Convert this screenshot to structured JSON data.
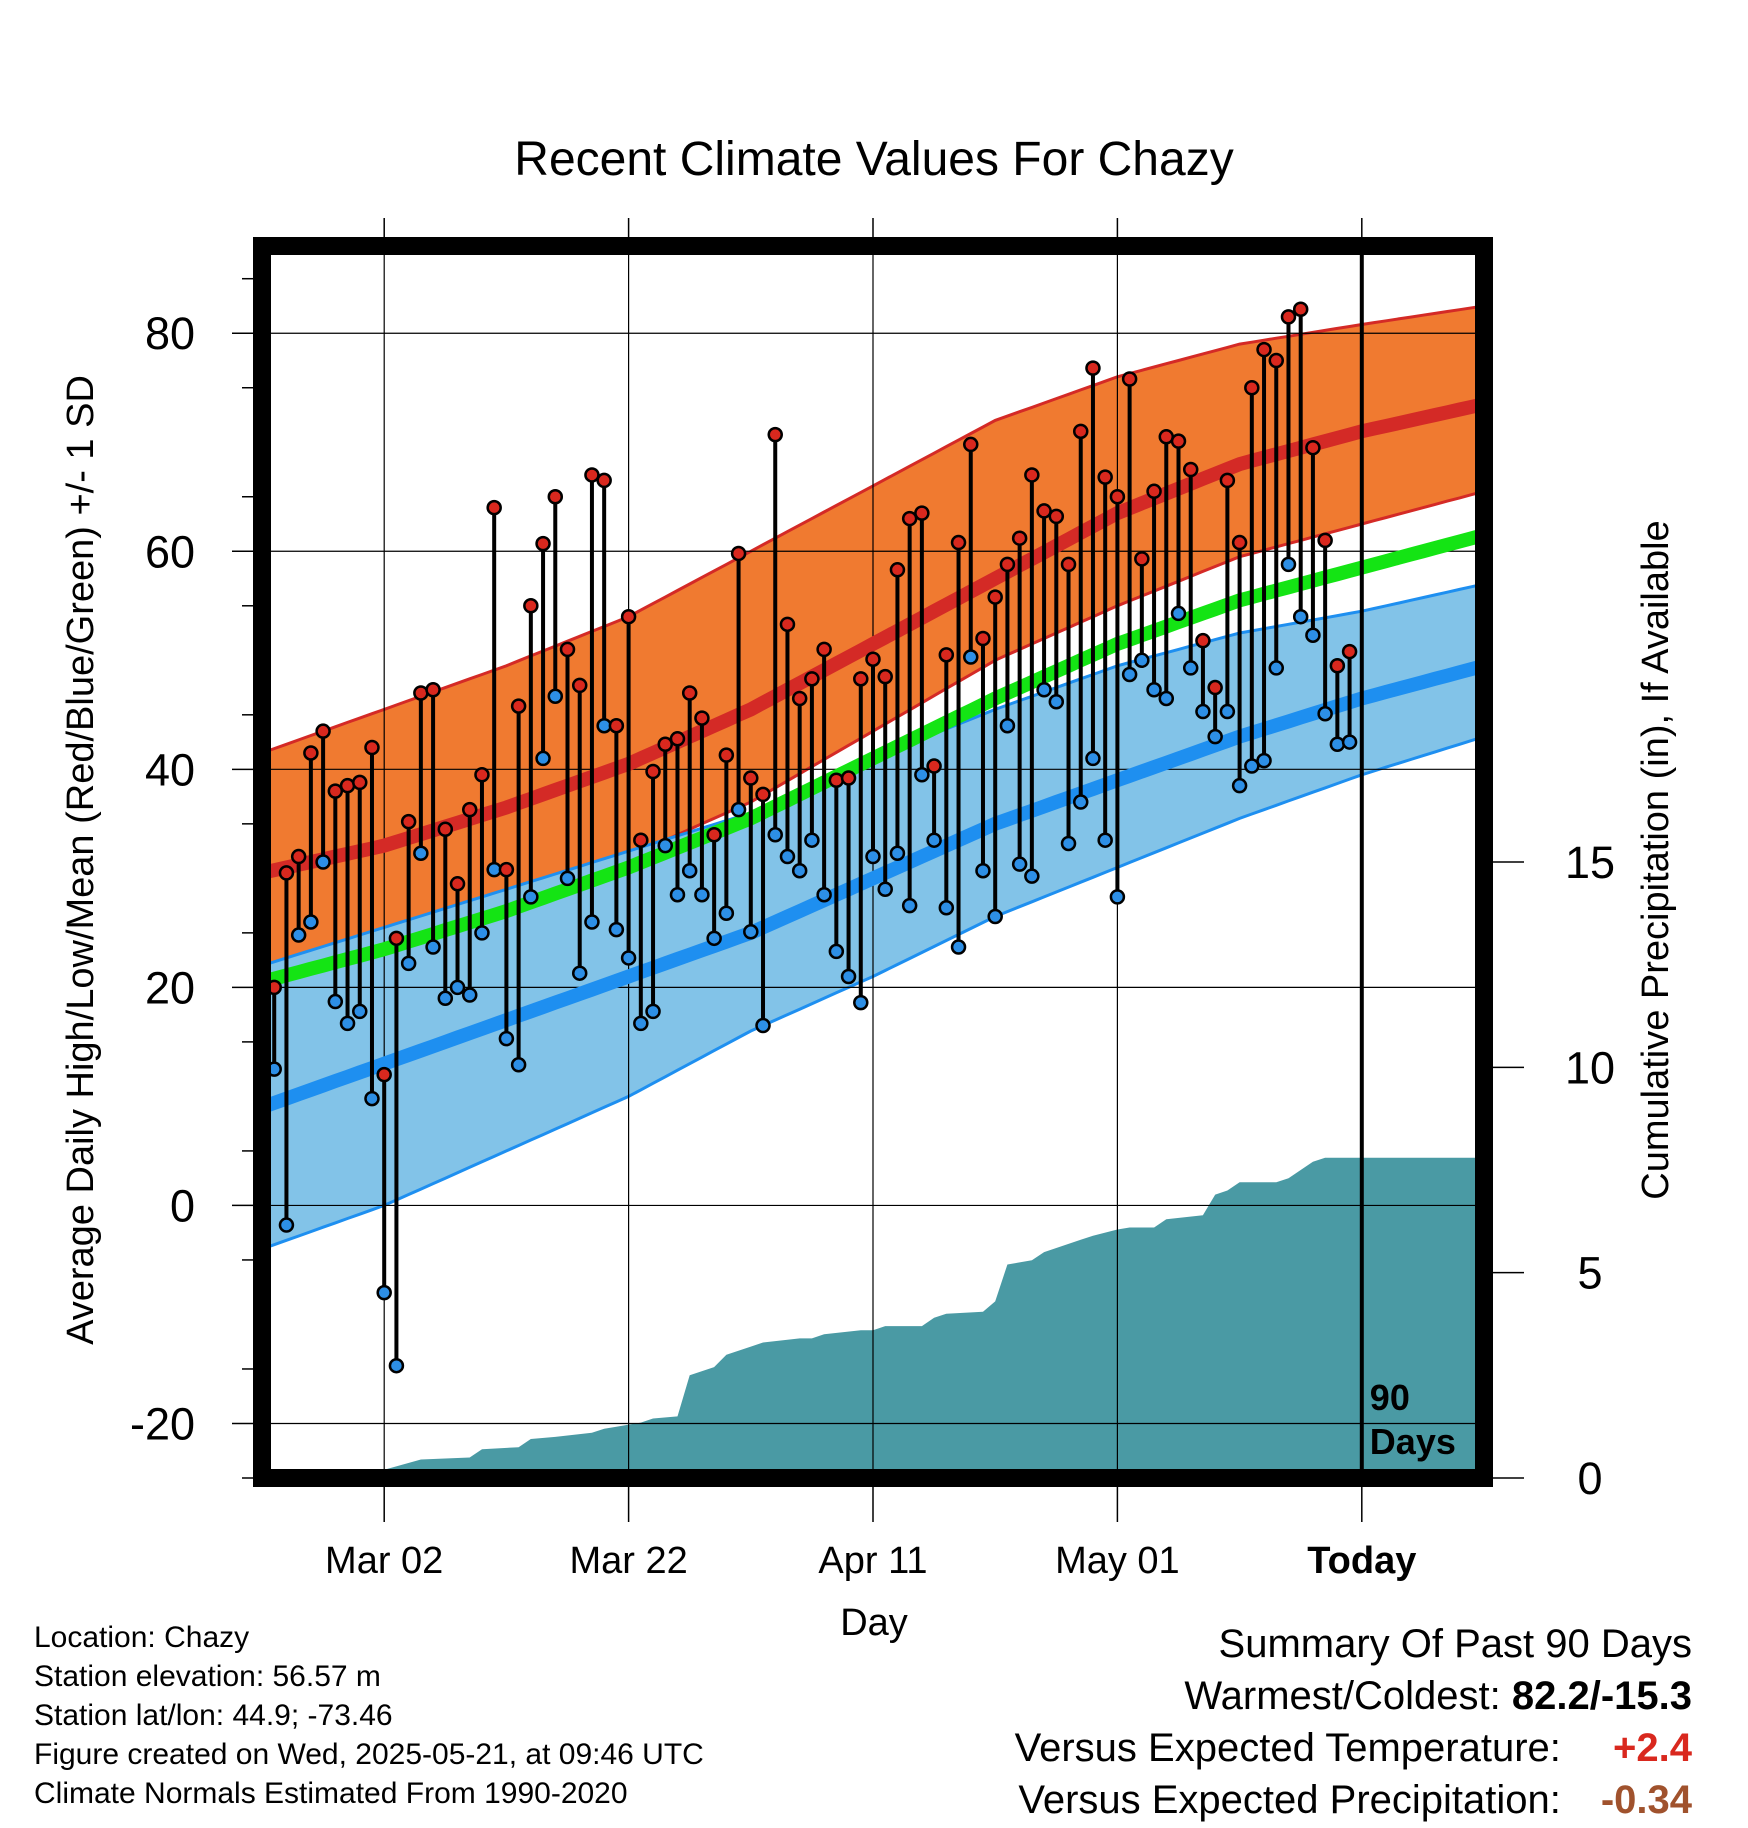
{
  "chart_data": {
    "type": "line",
    "title": "Recent Climate Values For Chazy",
    "xlabel": "Day",
    "ylabel": "Average Daily High/Low/Mean (Red/Blue/Green) +/- 1 SD",
    "y2label": "Cumulative Precipitation (in), If Available",
    "x_day_range": [
      -90,
      10
    ],
    "x_ticks": [
      {
        "day": -80,
        "label": "Mar 02"
      },
      {
        "day": -60,
        "label": "Mar 22"
      },
      {
        "day": -40,
        "label": "Apr 11"
      },
      {
        "day": -20,
        "label": "May 01"
      },
      {
        "day": 0,
        "label": "Today"
      }
    ],
    "ylim": [
      -25,
      88
    ],
    "y_ticks": [
      -20,
      0,
      20,
      40,
      60,
      80
    ],
    "y2lim": [
      0,
      30
    ],
    "y2_ticks": [
      0,
      5,
      10,
      15
    ],
    "today_marker": "90\nDays",
    "grid": true,
    "normals": {
      "day": [
        -90,
        -80,
        -70,
        -60,
        -50,
        -40,
        -30,
        -20,
        -10,
        0,
        10
      ],
      "high_mean": [
        30.5,
        33,
        36.5,
        40.5,
        45.5,
        51.5,
        57.5,
        63.5,
        68,
        71,
        73.5
      ],
      "high_sd_upper": [
        41.5,
        45.5,
        49.5,
        54,
        60,
        66,
        72,
        76,
        79,
        80.8,
        82.5
      ],
      "high_sd_lower": [
        22,
        25,
        28.5,
        32,
        37,
        43.5,
        50,
        55,
        59.5,
        62.5,
        65.5
      ],
      "low_mean": [
        9,
        13,
        17,
        21,
        25,
        30,
        35,
        39,
        43,
        46.5,
        49.5
      ],
      "low_sd_upper": [
        22,
        25.5,
        29,
        32.5,
        36,
        41,
        45.5,
        49.5,
        52.5,
        54.5,
        57
      ],
      "low_sd_lower": [
        -4,
        0,
        5,
        10,
        16,
        21,
        26.5,
        31,
        35.5,
        39.5,
        43
      ],
      "mean": [
        20.5,
        23.5,
        27,
        31,
        35.5,
        41,
        46.5,
        51.5,
        55.5,
        58.5,
        61.5
      ]
    },
    "series": [
      {
        "name": "High",
        "values": [
          23,
          20,
          30.5,
          32,
          41.5,
          43.5,
          38,
          38.5,
          38.8,
          42,
          12,
          24.5,
          35.2,
          47,
          47.3,
          34.5,
          29.5,
          36.3,
          39.5,
          64,
          30.8,
          45.8,
          55,
          60.7,
          65,
          51,
          47.7,
          67,
          66.5,
          44,
          54,
          33.5,
          39.8,
          42.3,
          42.8,
          47,
          44.7,
          34,
          41.3,
          59.8,
          39.2,
          37.7,
          70.7,
          53.3,
          46.5,
          48.3,
          51,
          39,
          39.2,
          48.3,
          50.1,
          48.5,
          58.3,
          63,
          63.5,
          40.3,
          50.5,
          60.8,
          69.8,
          52,
          55.8,
          58.8,
          61.2,
          67,
          63.7,
          63.2,
          58.8,
          71,
          76.8,
          66.8,
          65,
          75.8,
          59.3,
          65.5,
          70.5,
          70.1,
          67.5,
          51.8,
          47.5,
          66.5,
          60.8,
          75,
          78.5,
          77.5,
          81.5,
          82.2,
          69.5,
          61,
          49.5,
          50.8
        ]
      },
      {
        "name": "Low",
        "values": [
          -15.3,
          12.5,
          -1.8,
          24.8,
          26,
          31.5,
          18.7,
          16.7,
          17.8,
          9.8,
          -8,
          -14.7,
          22.2,
          32.3,
          23.7,
          19,
          20,
          19.3,
          25,
          30.8,
          15.3,
          12.9,
          28.3,
          41,
          46.7,
          30,
          21.3,
          26,
          44,
          25.3,
          22.7,
          16.7,
          17.8,
          33,
          28.5,
          30.7,
          28.5,
          24.5,
          26.8,
          36.3,
          25.1,
          16.5,
          34,
          32,
          30.7,
          33.5,
          28.5,
          23.3,
          21,
          18.6,
          32,
          29,
          32.3,
          27.5,
          39.5,
          33.5,
          27.3,
          23.7,
          50.3,
          30.7,
          26.5,
          44,
          31.3,
          30.2,
          47.3,
          46.2,
          33.2,
          37,
          41,
          33.5,
          28.3,
          48.7,
          50,
          47.3,
          46.5,
          54.3,
          49.3,
          45.3,
          43,
          45.3,
          38.5,
          40.3,
          40.8,
          49.3,
          58.8,
          54,
          52.3,
          45.1,
          42.3,
          42.5
        ]
      }
    ],
    "precipitation": {
      "day": [
        -90,
        -81,
        -80,
        -77,
        -73,
        -72,
        -69,
        -68,
        -66,
        -63,
        -62,
        -61,
        -59,
        -58,
        -56,
        -55,
        -53,
        -52,
        -50,
        -49,
        -46,
        -45,
        -44,
        -41,
        -40,
        -39,
        -36,
        -35,
        -34,
        -31,
        -30,
        -29,
        -27,
        -26,
        -23,
        -22,
        -20,
        -19,
        -17,
        -16,
        -13,
        -12,
        -11,
        -10,
        -7,
        -6,
        -5,
        -4,
        -3,
        -2,
        10
      ],
      "total": [
        0,
        0,
        0.2,
        0.45,
        0.5,
        0.7,
        0.75,
        0.95,
        1.0,
        1.1,
        1.2,
        1.25,
        1.35,
        1.45,
        1.5,
        2.5,
        2.7,
        3.0,
        3.2,
        3.3,
        3.4,
        3.4,
        3.5,
        3.6,
        3.6,
        3.7,
        3.7,
        3.9,
        4.0,
        4.05,
        4.3,
        5.2,
        5.3,
        5.5,
        5.8,
        5.9,
        6.05,
        6.1,
        6.1,
        6.3,
        6.4,
        6.9,
        7.0,
        7.2,
        7.2,
        7.3,
        7.5,
        7.7,
        7.8,
        7.8,
        7.8
      ]
    }
  },
  "info": {
    "location": "Location: Chazy",
    "elevation": "Station elevation: 56.57 m",
    "latlon": "Station lat/lon: 44.9; -73.46",
    "created": "Figure created on Wed, 2025-05-21, at 09:46 UTC",
    "normals": "Climate Normals Estimated From 1990-2020"
  },
  "summary": {
    "title": "Summary Of Past 90 Days",
    "warm_cold_label": "Warmest/Coldest:",
    "warm_cold_value": "82.2/-15.3",
    "temp_label": "Versus Expected Temperature:",
    "temp_value": "+2.4",
    "precip_label": "Versus Expected Precipitation:",
    "precip_value": "-0.34"
  },
  "colors": {
    "high_band": "#f07a30",
    "high_line": "#d42a26",
    "low_band": "#82c3e8",
    "low_line": "#1e8ff0",
    "mean_line": "#14e414",
    "precip": "#4a9aa4",
    "high_dot": "#d9281e",
    "low_dot": "#2d8fe6",
    "temp_value": "#d9281e",
    "precip_value": "#a0522d"
  }
}
